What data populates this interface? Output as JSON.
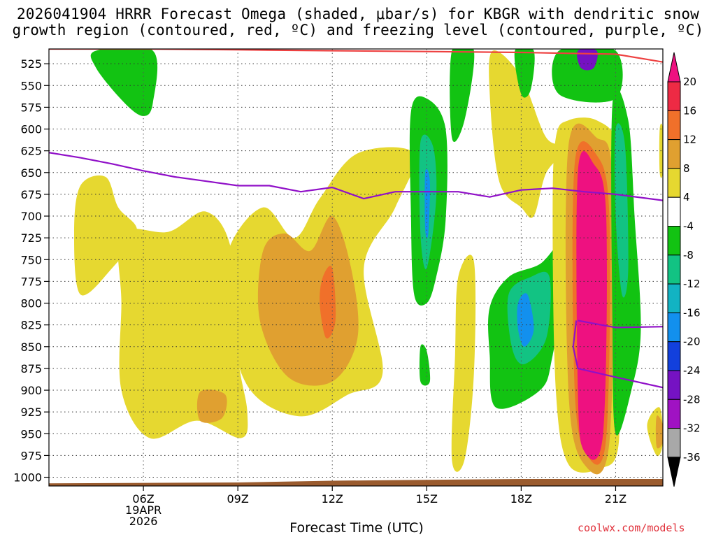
{
  "chart_data": {
    "type": "heatmap",
    "title_line1": "2026041904 HRRR Forecast Omega (shaded, μbar/s) for KBGR with dendritic snow",
    "title_line2": "growth region (contoured, red, ºC) and freezing level (contoured, purple, ºC)",
    "xlabel": "Forecast Time (UTC)",
    "credit": "coolwx.com/models",
    "date_label": [
      "19APR",
      "2026"
    ],
    "x_range_hours": [
      3,
      22.5
    ],
    "x_ticks": [
      {
        "hour": 6,
        "label": "06Z"
      },
      {
        "hour": 9,
        "label": "09Z"
      },
      {
        "hour": 12,
        "label": "12Z"
      },
      {
        "hour": 15,
        "label": "15Z"
      },
      {
        "hour": 18,
        "label": "18Z"
      },
      {
        "hour": 21,
        "label": "21Z"
      }
    ],
    "y_range_hpa": [
      1010,
      508
    ],
    "y_ticks": [
      525,
      550,
      575,
      600,
      625,
      650,
      675,
      700,
      725,
      750,
      775,
      800,
      825,
      850,
      875,
      900,
      925,
      950,
      975,
      1000
    ],
    "colorbar": {
      "labels": [
        "20",
        "16",
        "12",
        "8",
        "4",
        "-4",
        "-8",
        "-12",
        "-16",
        "-20",
        "-24",
        "-28",
        "-32",
        "-36"
      ],
      "colors": [
        "#ee2a44",
        "#f0702a",
        "#e0a030",
        "#e6d830",
        "#ffffff",
        "#12c312",
        "#12c383",
        "#12b3c3",
        "#1290ee",
        "#1240dd",
        "#7512c3",
        "#a012c3",
        "#a8a8a8"
      ],
      "top_arrow": "#ee1180",
      "bottom_arrow": "#000000"
    },
    "freezing_level": [
      [
        3,
        627
      ],
      [
        4,
        633
      ],
      [
        5,
        640
      ],
      [
        6,
        648
      ],
      [
        7,
        655
      ],
      [
        8,
        660
      ],
      [
        9,
        665
      ],
      [
        10,
        665
      ],
      [
        11,
        672
      ],
      [
        12,
        667
      ],
      [
        13,
        680
      ],
      [
        14,
        672
      ],
      [
        15,
        672
      ],
      [
        16,
        672
      ],
      [
        17,
        678
      ],
      [
        18,
        670
      ],
      [
        19,
        668
      ],
      [
        20,
        672
      ],
      [
        21,
        675
      ],
      [
        22.5,
        682
      ]
    ],
    "freezing_level_low": [
      [
        19.75,
        820
      ],
      [
        19.65,
        850
      ],
      [
        19.8,
        875
      ],
      [
        21,
        885
      ],
      [
        22.5,
        897
      ]
    ],
    "freezing_level_low_upper": [
      [
        19.8,
        820
      ],
      [
        21,
        828
      ],
      [
        22.5,
        827
      ]
    ],
    "dgz_top": [
      [
        3,
        508
      ],
      [
        6,
        508
      ],
      [
        9,
        509
      ],
      [
        12,
        510
      ],
      [
        15,
        511
      ],
      [
        18,
        512
      ],
      [
        21,
        514
      ],
      [
        22.5,
        523
      ]
    ],
    "omega_regions": [
      {
        "name": "green-upper-early",
        "value": -4,
        "points": [
          [
            4.5,
            510
          ],
          [
            6.3,
            510
          ],
          [
            6.3,
            570
          ],
          [
            6.0,
            585
          ],
          [
            5.4,
            570
          ],
          [
            4.5,
            530
          ]
        ]
      },
      {
        "name": "yellow-left",
        "value": 4,
        "points": [
          [
            4.0,
            665
          ],
          [
            4.8,
            655
          ],
          [
            5.2,
            690
          ],
          [
            5.8,
            718
          ],
          [
            5.0,
            760
          ],
          [
            4.0,
            790
          ],
          [
            3.8,
            720
          ]
        ]
      },
      {
        "name": "yellow-middle",
        "value": 4,
        "points": [
          [
            5.3,
            720
          ],
          [
            6.8,
            718
          ],
          [
            8.0,
            695
          ],
          [
            8.8,
            740
          ],
          [
            9.0,
            860
          ],
          [
            9.3,
            925
          ],
          [
            9.1,
            955
          ],
          [
            7.7,
            935
          ],
          [
            6.2,
            955
          ],
          [
            5.3,
            900
          ],
          [
            5.3,
            800
          ]
        ]
      },
      {
        "name": "yellow-center",
        "value": 4,
        "points": [
          [
            8.7,
            740
          ],
          [
            9.8,
            690
          ],
          [
            10.8,
            725
          ],
          [
            11.6,
            680
          ],
          [
            12.8,
            628
          ],
          [
            14.6,
            628
          ],
          [
            14.0,
            690
          ],
          [
            13.0,
            760
          ],
          [
            13.6,
            880
          ],
          [
            12.5,
            905
          ],
          [
            11.0,
            930
          ],
          [
            9.4,
            900
          ],
          [
            8.7,
            820
          ]
        ]
      },
      {
        "name": "orange-center",
        "value": 8,
        "points": [
          [
            9.8,
            740
          ],
          [
            10.5,
            720
          ],
          [
            11.3,
            740
          ],
          [
            12.0,
            700
          ],
          [
            12.6,
            760
          ],
          [
            12.8,
            840
          ],
          [
            12.0,
            890
          ],
          [
            10.6,
            885
          ],
          [
            9.7,
            820
          ]
        ]
      },
      {
        "name": "darkorange-center",
        "value": 12,
        "points": [
          [
            11.7,
            770
          ],
          [
            12.0,
            760
          ],
          [
            12.1,
            820
          ],
          [
            11.8,
            840
          ],
          [
            11.6,
            800
          ]
        ]
      },
      {
        "name": "orange-small",
        "value": 8,
        "points": [
          [
            7.8,
            902
          ],
          [
            8.6,
            905
          ],
          [
            8.5,
            932
          ],
          [
            7.8,
            935
          ]
        ]
      },
      {
        "name": "yellow-mid-right",
        "value": 4,
        "points": [
          [
            16.0,
            770
          ],
          [
            16.5,
            752
          ],
          [
            16.5,
            880
          ],
          [
            16.2,
            980
          ],
          [
            15.8,
            980
          ],
          [
            15.9,
            860
          ]
        ]
      },
      {
        "name": "yellow-upper-right",
        "value": 4,
        "points": [
          [
            17.1,
            510
          ],
          [
            18.0,
            540
          ],
          [
            18.8,
            610
          ],
          [
            19.5,
            620
          ],
          [
            18.8,
            650
          ],
          [
            18.4,
            700
          ],
          [
            18.0,
            690
          ],
          [
            17.3,
            660
          ],
          [
            17.0,
            560
          ]
        ]
      },
      {
        "name": "green-upper-right",
        "value": -4,
        "points": [
          [
            17.8,
            510
          ],
          [
            18.4,
            510
          ],
          [
            18.3,
            555
          ],
          [
            18.0,
            560
          ]
        ]
      },
      {
        "name": "green-15z",
        "value": -4,
        "points": [
          [
            14.5,
            580
          ],
          [
            15.0,
            565
          ],
          [
            15.6,
            600
          ],
          [
            15.6,
            705
          ],
          [
            15.3,
            770
          ],
          [
            15.0,
            800
          ],
          [
            14.6,
            790
          ],
          [
            14.5,
            700
          ]
        ]
      },
      {
        "name": "teal-15z",
        "value": -8,
        "points": [
          [
            14.8,
            615
          ],
          [
            15.2,
            620
          ],
          [
            15.3,
            680
          ],
          [
            15.0,
            760
          ],
          [
            14.8,
            720
          ]
        ]
      },
      {
        "name": "blue-15z",
        "value": -16,
        "points": [
          [
            14.95,
            650
          ],
          [
            15.1,
            660
          ],
          [
            15.05,
            720
          ],
          [
            14.95,
            715
          ]
        ]
      },
      {
        "name": "green-16z",
        "value": -4,
        "points": [
          [
            15.8,
            510
          ],
          [
            16.5,
            510
          ],
          [
            16.2,
            590
          ],
          [
            15.8,
            610
          ]
        ]
      },
      {
        "name": "green-small-15z",
        "value": -4,
        "points": [
          [
            14.8,
            850
          ],
          [
            15.0,
            855
          ],
          [
            15.1,
            890
          ],
          [
            14.8,
            890
          ]
        ]
      },
      {
        "name": "green-18z",
        "value": -4,
        "points": [
          [
            17.0,
            805
          ],
          [
            17.6,
            770
          ],
          [
            18.6,
            755
          ],
          [
            19.3,
            730
          ],
          [
            19.4,
            770
          ],
          [
            19.0,
            860
          ],
          [
            18.6,
            900
          ],
          [
            17.2,
            920
          ],
          [
            17.0,
            860
          ]
        ]
      },
      {
        "name": "teal-18z",
        "value": -8,
        "points": [
          [
            17.6,
            790
          ],
          [
            18.3,
            770
          ],
          [
            18.9,
            770
          ],
          [
            18.8,
            840
          ],
          [
            18.1,
            870
          ],
          [
            17.7,
            850
          ]
        ]
      },
      {
        "name": "blue-18z",
        "value": -16,
        "points": [
          [
            17.9,
            800
          ],
          [
            18.2,
            790
          ],
          [
            18.4,
            830
          ],
          [
            18.1,
            850
          ],
          [
            17.9,
            830
          ]
        ]
      },
      {
        "name": "green-20z-top",
        "value": -4,
        "points": [
          [
            19.2,
            510
          ],
          [
            21.0,
            510
          ],
          [
            21.0,
            565
          ],
          [
            19.2,
            560
          ]
        ]
      },
      {
        "name": "purple-20z-top",
        "value": -24,
        "points": [
          [
            19.8,
            510
          ],
          [
            20.4,
            510
          ],
          [
            20.3,
            530
          ],
          [
            19.9,
            530
          ]
        ]
      },
      {
        "name": "yellow-20z",
        "value": 4,
        "points": [
          [
            19.1,
            610
          ],
          [
            19.5,
            590
          ],
          [
            20.4,
            590
          ],
          [
            21.1,
            620
          ],
          [
            21.3,
            720
          ],
          [
            21.0,
            810
          ],
          [
            21.1,
            960
          ],
          [
            20.5,
            990
          ],
          [
            19.5,
            985
          ],
          [
            19.1,
            900
          ],
          [
            19.0,
            700
          ]
        ]
      },
      {
        "name": "orange-20z",
        "value": 8,
        "points": [
          [
            19.5,
            620
          ],
          [
            20.4,
            610
          ],
          [
            20.9,
            660
          ],
          [
            20.8,
            960
          ],
          [
            20.0,
            985
          ],
          [
            19.5,
            900
          ]
        ]
      },
      {
        "name": "red-20z",
        "value": 12,
        "points": [
          [
            19.7,
            640
          ],
          [
            20.4,
            630
          ],
          [
            20.8,
            700
          ],
          [
            20.7,
            955
          ],
          [
            20.1,
            975
          ],
          [
            19.7,
            900
          ]
        ]
      },
      {
        "name": "magenta-20z",
        "value": 20,
        "points": [
          [
            19.8,
            650
          ],
          [
            20.3,
            640
          ],
          [
            20.7,
            700
          ],
          [
            20.6,
            950
          ],
          [
            20.0,
            970
          ],
          [
            19.8,
            900
          ]
        ]
      },
      {
        "name": "green-21z",
        "value": -4,
        "points": [
          [
            20.9,
            570
          ],
          [
            21.4,
            590
          ],
          [
            21.6,
            700
          ],
          [
            21.8,
            830
          ],
          [
            21.5,
            900
          ],
          [
            21.0,
            950
          ],
          [
            20.9,
            830
          ]
        ]
      },
      {
        "name": "teal-21z",
        "value": -8,
        "points": [
          [
            21.0,
            600
          ],
          [
            21.3,
            620
          ],
          [
            21.4,
            760
          ],
          [
            21.2,
            790
          ],
          [
            21.0,
            700
          ]
        ]
      },
      {
        "name": "yellow-corner",
        "value": 4,
        "points": [
          [
            22.0,
            940
          ],
          [
            22.4,
            920
          ],
          [
            22.5,
            960
          ],
          [
            22.3,
            975
          ]
        ]
      },
      {
        "name": "orange-corner",
        "value": 8,
        "points": [
          [
            22.3,
            930
          ],
          [
            22.5,
            940
          ],
          [
            22.5,
            960
          ],
          [
            22.3,
            965
          ]
        ]
      },
      {
        "name": "yellow-corner-top",
        "value": 4,
        "points": [
          [
            22.4,
            600
          ],
          [
            22.5,
            600
          ],
          [
            22.5,
            650
          ],
          [
            22.4,
            650
          ]
        ]
      }
    ],
    "ground_surface": [
      [
        3,
        1007
      ],
      [
        9,
        1006
      ],
      [
        12,
        1004
      ],
      [
        18,
        1002
      ],
      [
        22.5,
        1002
      ]
    ]
  }
}
